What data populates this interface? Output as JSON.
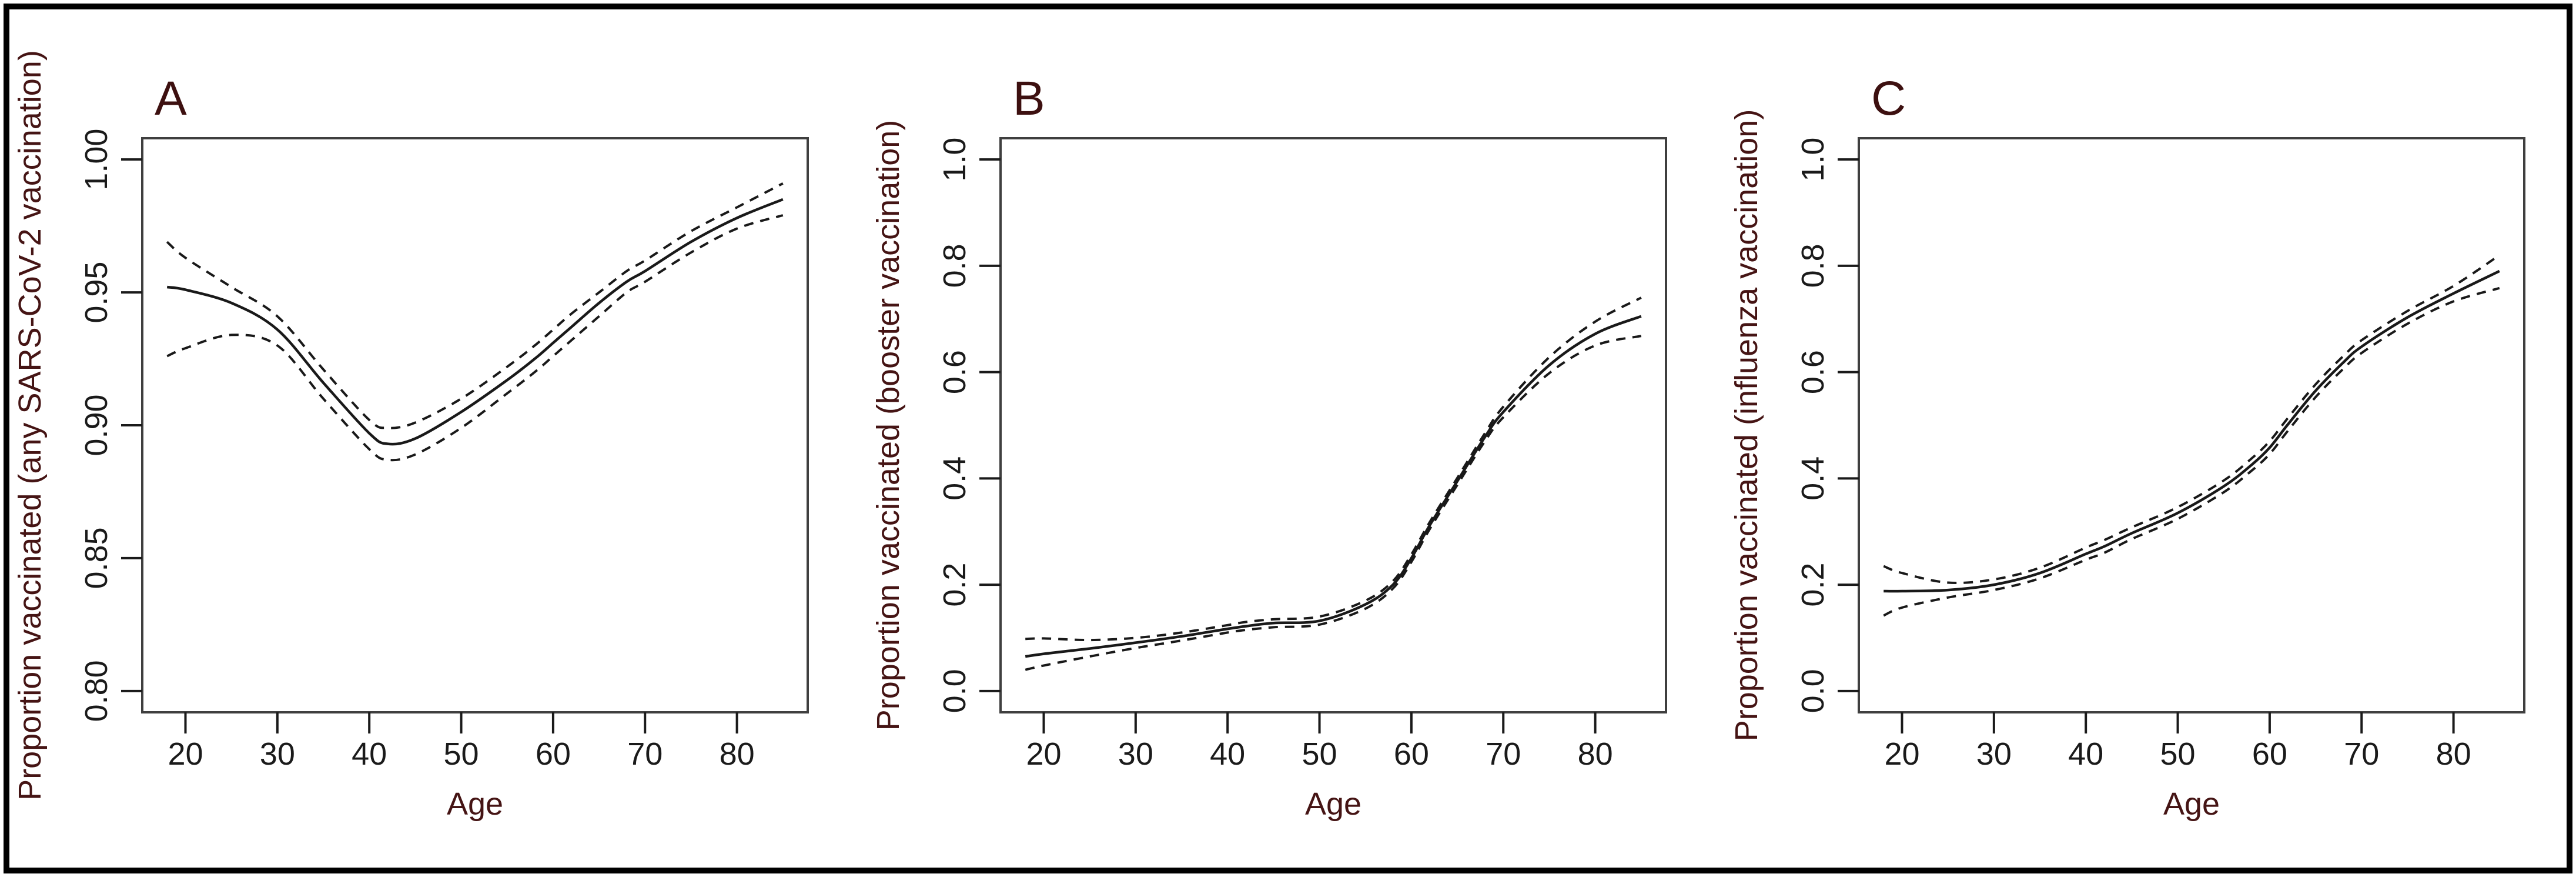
{
  "figure": {
    "background": "#ffffff",
    "outer_border_color": "#000000",
    "frame_color": "#3f3f3f",
    "curve_color": "#191919",
    "title_color": "#451414",
    "tick_label_color": "#1a1a1a"
  },
  "chart_data": [
    {
      "type": "line",
      "panel_label": "A",
      "xlabel": "Age",
      "ylabel": "Proportion vaccinated (any SARS-CoV-2 vaccination)",
      "grid": false,
      "legend": "none",
      "xlim": [
        15.3,
        87.7
      ],
      "ylim": [
        0.792,
        1.008
      ],
      "x_ticks": [
        20,
        30,
        40,
        50,
        60,
        70,
        80
      ],
      "y_ticks": [
        0.8,
        0.85,
        0.9,
        0.95,
        1.0
      ],
      "y_tick_labels": [
        "0.80",
        "0.85",
        "0.90",
        "0.95",
        "1.00"
      ],
      "x": [
        18,
        20,
        25,
        30,
        35,
        40,
        42,
        45,
        50,
        55,
        58,
        60,
        62,
        65,
        68,
        70,
        75,
        80,
        85
      ],
      "series": [
        {
          "name": "estimate",
          "style": "solid",
          "values": [
            0.952,
            0.951,
            0.946,
            0.936,
            0.916,
            0.897,
            0.893,
            0.895,
            0.905,
            0.917,
            0.925,
            0.931,
            0.937,
            0.946,
            0.954,
            0.958,
            0.969,
            0.978,
            0.985
          ]
        },
        {
          "name": "upper-95ci",
          "style": "dashed",
          "values": [
            0.969,
            0.963,
            0.952,
            0.941,
            0.921,
            0.902,
            0.899,
            0.901,
            0.91,
            0.922,
            0.93,
            0.936,
            0.942,
            0.95,
            0.958,
            0.962,
            0.973,
            0.982,
            0.991
          ]
        },
        {
          "name": "lower-95ci",
          "style": "dashed",
          "values": [
            0.926,
            0.929,
            0.934,
            0.93,
            0.91,
            0.891,
            0.887,
            0.889,
            0.899,
            0.912,
            0.92,
            0.926,
            0.932,
            0.941,
            0.95,
            0.954,
            0.965,
            0.974,
            0.979
          ]
        }
      ]
    },
    {
      "type": "line",
      "panel_label": "B",
      "xlabel": "Age",
      "ylabel": "Proportion vaccinated (booster vaccination)",
      "grid": false,
      "legend": "none",
      "xlim": [
        15.3,
        87.7
      ],
      "ylim": [
        -0.04,
        1.04
      ],
      "x_ticks": [
        20,
        30,
        40,
        50,
        60,
        70,
        80
      ],
      "y_ticks": [
        0.0,
        0.2,
        0.4,
        0.6,
        0.8,
        1.0
      ],
      "y_tick_labels": [
        "0.0",
        "0.2",
        "0.4",
        "0.6",
        "0.8",
        "1.0"
      ],
      "x": [
        18,
        20,
        25,
        30,
        35,
        40,
        42,
        45,
        50,
        55,
        58,
        60,
        62,
        65,
        68,
        70,
        75,
        80,
        85
      ],
      "series": [
        {
          "name": "estimate",
          "style": "solid",
          "values": [
            0.065,
            0.07,
            0.08,
            0.091,
            0.103,
            0.117,
            0.122,
            0.128,
            0.132,
            0.163,
            0.2,
            0.25,
            0.312,
            0.395,
            0.478,
            0.525,
            0.613,
            0.672,
            0.705
          ]
        },
        {
          "name": "upper-95ci",
          "style": "dashed",
          "values": [
            0.098,
            0.099,
            0.096,
            0.1,
            0.11,
            0.124,
            0.13,
            0.135,
            0.14,
            0.17,
            0.207,
            0.257,
            0.318,
            0.401,
            0.485,
            0.535,
            0.628,
            0.695,
            0.74
          ]
        },
        {
          "name": "lower-95ci",
          "style": "dashed",
          "values": [
            0.04,
            0.048,
            0.065,
            0.081,
            0.095,
            0.11,
            0.115,
            0.12,
            0.125,
            0.155,
            0.193,
            0.243,
            0.305,
            0.388,
            0.47,
            0.515,
            0.598,
            0.65,
            0.668
          ]
        }
      ]
    },
    {
      "type": "line",
      "panel_label": "C",
      "xlabel": "Age",
      "ylabel": "Proportion vaccinated (influenza vaccination)",
      "grid": false,
      "legend": "none",
      "xlim": [
        15.3,
        87.7
      ],
      "ylim": [
        -0.04,
        1.04
      ],
      "x_ticks": [
        20,
        30,
        40,
        50,
        60,
        70,
        80
      ],
      "y_ticks": [
        0.0,
        0.2,
        0.4,
        0.6,
        0.8,
        1.0
      ],
      "y_tick_labels": [
        "0.0",
        "0.2",
        "0.4",
        "0.6",
        "0.8",
        "1.0"
      ],
      "x": [
        18,
        20,
        25,
        30,
        35,
        40,
        42,
        45,
        50,
        55,
        58,
        60,
        62,
        65,
        68,
        70,
        75,
        80,
        85
      ],
      "series": [
        {
          "name": "estimate",
          "style": "solid",
          "values": [
            0.188,
            0.188,
            0.19,
            0.2,
            0.222,
            0.258,
            0.272,
            0.297,
            0.335,
            0.385,
            0.425,
            0.458,
            0.502,
            0.565,
            0.618,
            0.648,
            0.703,
            0.748,
            0.79
          ]
        },
        {
          "name": "upper-95ci",
          "style": "dashed",
          "values": [
            0.235,
            0.222,
            0.204,
            0.21,
            0.232,
            0.27,
            0.284,
            0.308,
            0.346,
            0.396,
            0.437,
            0.47,
            0.514,
            0.577,
            0.63,
            0.66,
            0.715,
            0.762,
            0.82
          ]
        },
        {
          "name": "lower-95ci",
          "style": "dashed",
          "values": [
            0.142,
            0.157,
            0.176,
            0.19,
            0.212,
            0.247,
            0.26,
            0.286,
            0.324,
            0.374,
            0.414,
            0.446,
            0.49,
            0.553,
            0.606,
            0.636,
            0.691,
            0.733,
            0.758
          ]
        }
      ]
    }
  ]
}
